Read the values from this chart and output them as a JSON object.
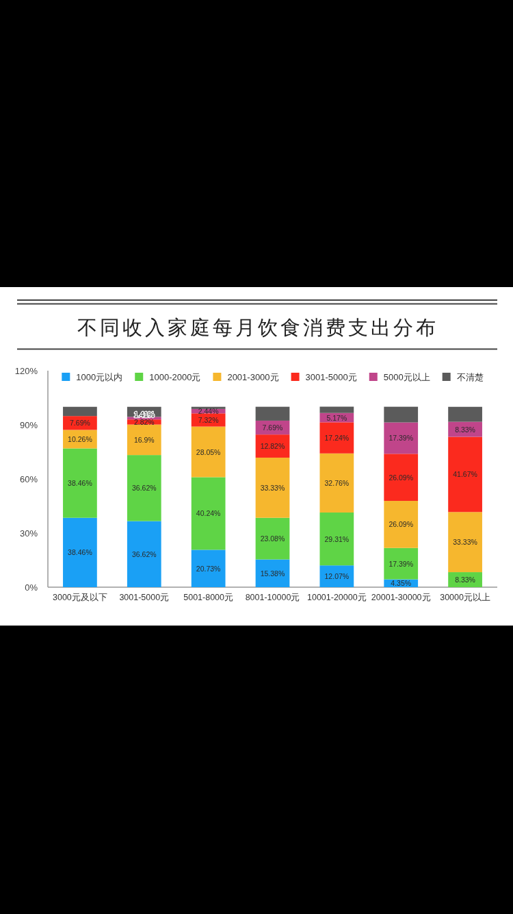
{
  "chart_data": {
    "type": "bar",
    "stacked": true,
    "title": "不同收入家庭每月饮食消费支出分布",
    "categories": [
      "3000元及以下",
      "3001-5000元",
      "5001-8000元",
      "8001-10000元",
      "10001-20000元",
      "20001-30000元",
      "30000元以上"
    ],
    "ylim": [
      0,
      120
    ],
    "yticks": [
      {
        "value": 0,
        "label": "0%"
      },
      {
        "value": 30,
        "label": "30%"
      },
      {
        "value": 60,
        "label": "60%"
      },
      {
        "value": 90,
        "label": "90%"
      },
      {
        "value": 120,
        "label": "120%"
      }
    ],
    "legend": "top",
    "series": [
      {
        "name": "1000元以内",
        "color": "#1aa0f5",
        "values": [
          38.46,
          36.62,
          20.73,
          15.38,
          12.07,
          4.35,
          null
        ],
        "value_labels": [
          "38.46%",
          "36.62%",
          "20.73%",
          "15.38%",
          "12.07%",
          "4.35%",
          null
        ]
      },
      {
        "name": "1000-2000元",
        "color": "#5fd446",
        "values": [
          38.46,
          36.62,
          40.24,
          23.08,
          29.31,
          17.39,
          8.33
        ],
        "value_labels": [
          "38.46%",
          "36.62%",
          "40.24%",
          "23.08%",
          "29.31%",
          "17.39%",
          "8.33%"
        ]
      },
      {
        "name": "2001-3000元",
        "color": "#f6b72e",
        "values": [
          10.26,
          16.9,
          28.05,
          33.33,
          32.76,
          26.09,
          33.33
        ],
        "value_labels": [
          "10.26%",
          "16.9%",
          "28.05%",
          "33.33%",
          "32.76%",
          "26.09%",
          "33.33%"
        ]
      },
      {
        "name": "3001-5000元",
        "color": "#fb2a1e",
        "values": [
          7.69,
          2.82,
          7.32,
          12.82,
          17.24,
          26.09,
          41.67
        ],
        "value_labels": [
          "7.69%",
          "2.82%",
          "7.32%",
          "12.82%",
          "17.24%",
          "26.09%",
          "41.67%"
        ]
      },
      {
        "name": "5000元以上",
        "color": "#c0458a",
        "values": [
          null,
          1.41,
          2.44,
          7.69,
          5.17,
          17.39,
          8.33
        ],
        "value_labels": [
          null,
          "1.41%",
          "2.44%",
          "7.69%",
          "5.17%",
          "17.39%",
          "8.33%"
        ]
      },
      {
        "name": "不清楚",
        "color": "#5b5b5b",
        "values": [
          5.1,
          5.6,
          1.2,
          7.7,
          3.5,
          8.7,
          8.3
        ]
      }
    ]
  }
}
